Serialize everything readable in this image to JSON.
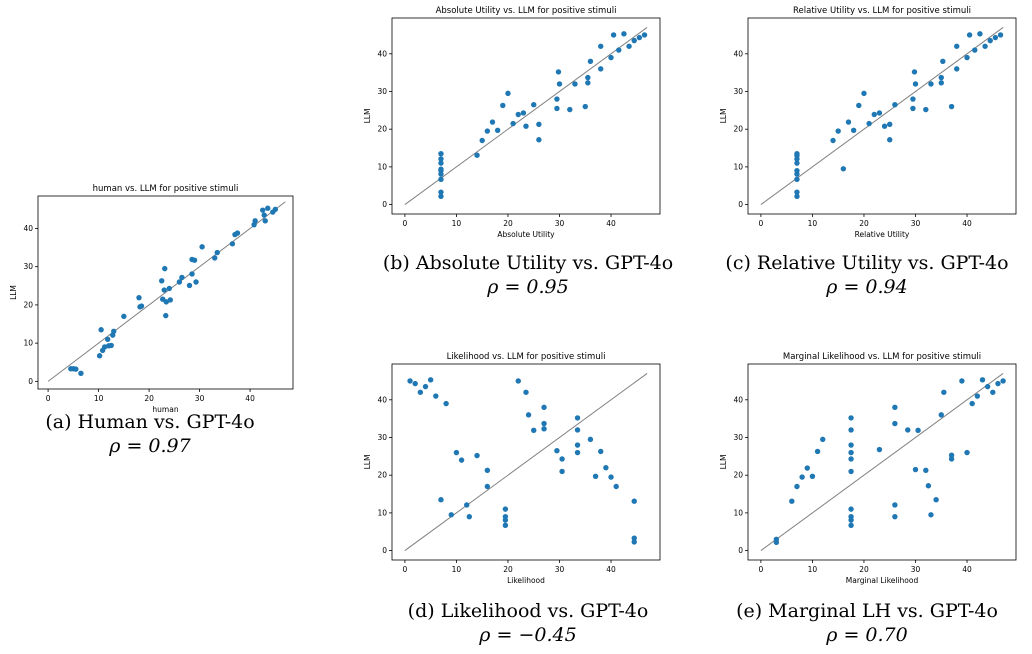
{
  "chart_data": [
    {
      "type": "scatter",
      "title": "human vs. LLM for positive stimuli",
      "xlabel": "human",
      "ylabel": "LLM",
      "xlim": [
        -2,
        48.5
      ],
      "ylim": [
        -2,
        48.5
      ],
      "xticks": [
        0,
        10,
        20,
        30,
        40
      ],
      "yticks": [
        0,
        10,
        20,
        30,
        40
      ],
      "reference_line": [
        [
          0,
          0
        ],
        [
          47,
          47
        ]
      ],
      "color": "#1f77b4",
      "line_color": "#808080",
      "caption": "(a) Human vs. GPT-4o",
      "rho": "ρ = 0.97",
      "points": [
        [
          4.5,
          3.3
        ],
        [
          5.0,
          3.3
        ],
        [
          5.5,
          3.2
        ],
        [
          6.5,
          2.1
        ],
        [
          10.2,
          6.7
        ],
        [
          10.5,
          13.5
        ],
        [
          10.8,
          8.1
        ],
        [
          11.2,
          9.0
        ],
        [
          11.8,
          11.0
        ],
        [
          12.0,
          9.3
        ],
        [
          12.5,
          9.4
        ],
        [
          12.8,
          12.1
        ],
        [
          13.0,
          13.1
        ],
        [
          15.0,
          17.0
        ],
        [
          18.0,
          21.9
        ],
        [
          18.2,
          19.5
        ],
        [
          18.5,
          19.7
        ],
        [
          22.5,
          26.3
        ],
        [
          22.7,
          21.5
        ],
        [
          23.0,
          23.9
        ],
        [
          23.1,
          29.5
        ],
        [
          23.3,
          17.2
        ],
        [
          23.4,
          20.8
        ],
        [
          24.0,
          24.3
        ],
        [
          24.2,
          21.3
        ],
        [
          26.0,
          26.0
        ],
        [
          26.5,
          27.2
        ],
        [
          28.0,
          25.1
        ],
        [
          28.5,
          31.9
        ],
        [
          28.5,
          28.1
        ],
        [
          29.0,
          31.7
        ],
        [
          29.3,
          26.0
        ],
        [
          30.5,
          35.2
        ],
        [
          33.0,
          32.3
        ],
        [
          33.5,
          33.7
        ],
        [
          36.5,
          36.0
        ],
        [
          37.0,
          38.4
        ],
        [
          37.5,
          38.8
        ],
        [
          40.8,
          41.0
        ],
        [
          41.0,
          42.0
        ],
        [
          42.5,
          44.8
        ],
        [
          42.8,
          43.5
        ],
        [
          43.0,
          42.0
        ],
        [
          43.5,
          45.3
        ],
        [
          44.5,
          44.3
        ],
        [
          45.0,
          45.0
        ]
      ]
    },
    {
      "type": "scatter",
      "title": "Absolute Utility vs. LLM for positive stimuli",
      "xlabel": "Absolute Utility",
      "ylabel": "LLM",
      "xlim": [
        -2.5,
        49.5
      ],
      "ylim": [
        -2.5,
        49.5
      ],
      "xticks": [
        0,
        10,
        20,
        30,
        40
      ],
      "yticks": [
        0,
        10,
        20,
        30,
        40
      ],
      "reference_line": [
        [
          0,
          0
        ],
        [
          47,
          47
        ]
      ],
      "color": "#1f77b4",
      "line_color": "#808080",
      "caption": "(b) Absolute Utility vs. GPT-4o",
      "rho": "ρ = 0.95",
      "points": [
        [
          7,
          2.2
        ],
        [
          7,
          3.3
        ],
        [
          7,
          6.7
        ],
        [
          7,
          8.1
        ],
        [
          7,
          9.0
        ],
        [
          7,
          9.4
        ],
        [
          7,
          11.0
        ],
        [
          7,
          12.1
        ],
        [
          7,
          13.5
        ],
        [
          14,
          13.1
        ],
        [
          15,
          17.0
        ],
        [
          16,
          19.5
        ],
        [
          17,
          21.9
        ],
        [
          18,
          19.7
        ],
        [
          19,
          26.3
        ],
        [
          20,
          29.5
        ],
        [
          21,
          21.5
        ],
        [
          22,
          23.9
        ],
        [
          23,
          24.3
        ],
        [
          23.5,
          20.8
        ],
        [
          25,
          26.5
        ],
        [
          26,
          17.2
        ],
        [
          26,
          21.3
        ],
        [
          29.5,
          25.5
        ],
        [
          29.5,
          28.0
        ],
        [
          29.8,
          35.2
        ],
        [
          30,
          32.0
        ],
        [
          32,
          25.2
        ],
        [
          33,
          32.0
        ],
        [
          35,
          26.0
        ],
        [
          35.5,
          32.3
        ],
        [
          35.5,
          33.7
        ],
        [
          36,
          38.0
        ],
        [
          38,
          36.0
        ],
        [
          38,
          42.0
        ],
        [
          40,
          39.0
        ],
        [
          40.5,
          45.0
        ],
        [
          41.5,
          41.0
        ],
        [
          42.5,
          45.3
        ],
        [
          43.5,
          42.0
        ],
        [
          44.5,
          43.5
        ],
        [
          45.5,
          44.3
        ],
        [
          46.5,
          45.0
        ]
      ]
    },
    {
      "type": "scatter",
      "title": "Relative Utility vs. LLM for positive stimuli",
      "xlabel": "Relative Utility",
      "ylabel": "LLM",
      "xlim": [
        -2.5,
        49.5
      ],
      "ylim": [
        -2.5,
        49.5
      ],
      "xticks": [
        0,
        10,
        20,
        30,
        40
      ],
      "yticks": [
        0,
        10,
        20,
        30,
        40
      ],
      "reference_line": [
        [
          0,
          0
        ],
        [
          47,
          47
        ]
      ],
      "color": "#1f77b4",
      "line_color": "#808080",
      "caption": "(c) Relative Utility vs. GPT-4o",
      "rho": "ρ = 0.94",
      "points": [
        [
          7,
          2.2
        ],
        [
          7,
          3.3
        ],
        [
          7,
          6.7
        ],
        [
          7,
          8.1
        ],
        [
          7,
          9.0
        ],
        [
          7,
          11.0
        ],
        [
          7,
          12.1
        ],
        [
          7,
          13.0
        ],
        [
          7,
          13.5
        ],
        [
          14,
          17.0
        ],
        [
          15,
          19.5
        ],
        [
          16,
          9.5
        ],
        [
          17,
          21.9
        ],
        [
          18,
          19.7
        ],
        [
          19,
          26.3
        ],
        [
          20,
          29.5
        ],
        [
          21,
          21.5
        ],
        [
          22,
          23.9
        ],
        [
          23,
          24.3
        ],
        [
          24,
          20.8
        ],
        [
          25,
          17.2
        ],
        [
          25,
          21.3
        ],
        [
          26,
          26.5
        ],
        [
          29.5,
          25.5
        ],
        [
          29.5,
          28.0
        ],
        [
          29.8,
          35.2
        ],
        [
          30,
          32.0
        ],
        [
          32,
          25.2
        ],
        [
          33,
          32.0
        ],
        [
          35,
          32.3
        ],
        [
          35,
          33.7
        ],
        [
          35.3,
          38.0
        ],
        [
          37,
          26.0
        ],
        [
          38,
          36.0
        ],
        [
          38,
          42.0
        ],
        [
          40,
          39.0
        ],
        [
          40.5,
          45.0
        ],
        [
          41.5,
          41.0
        ],
        [
          42.5,
          45.3
        ],
        [
          43.5,
          42.0
        ],
        [
          44.5,
          43.5
        ],
        [
          45.5,
          44.3
        ],
        [
          46.5,
          45.0
        ]
      ]
    },
    {
      "type": "scatter",
      "title": "Likelihood vs. LLM for positive stimuli",
      "xlabel": "Likelihood",
      "ylabel": "LLM",
      "xlim": [
        -2.5,
        49.5
      ],
      "ylim": [
        -2.5,
        49.5
      ],
      "xticks": [
        0,
        10,
        20,
        30,
        40
      ],
      "yticks": [
        0,
        10,
        20,
        30,
        40
      ],
      "reference_line": [
        [
          0,
          0
        ],
        [
          47,
          47
        ]
      ],
      "color": "#1f77b4",
      "line_color": "#808080",
      "caption": "(d) Likelihood vs. GPT-4o",
      "rho": "ρ = −0.45",
      "points": [
        [
          1,
          45.0
        ],
        [
          2,
          44.3
        ],
        [
          3,
          42.0
        ],
        [
          4,
          43.5
        ],
        [
          5,
          45.3
        ],
        [
          6,
          41.0
        ],
        [
          7,
          13.5
        ],
        [
          8,
          39.0
        ],
        [
          9,
          9.5
        ],
        [
          10,
          26.0
        ],
        [
          11,
          24.0
        ],
        [
          12,
          12.1
        ],
        [
          12.5,
          9.0
        ],
        [
          14,
          25.2
        ],
        [
          16,
          17.0
        ],
        [
          16,
          21.3
        ],
        [
          19.5,
          6.7
        ],
        [
          19.5,
          8.1
        ],
        [
          19.5,
          9.0
        ],
        [
          19.5,
          11.0
        ],
        [
          22,
          45.0
        ],
        [
          23.5,
          42.0
        ],
        [
          24,
          36.0
        ],
        [
          25,
          31.9
        ],
        [
          27,
          38.0
        ],
        [
          27,
          32.3
        ],
        [
          27,
          33.7
        ],
        [
          29.5,
          26.5
        ],
        [
          30.5,
          24.3
        ],
        [
          30.5,
          21.0
        ],
        [
          33.5,
          35.2
        ],
        [
          33.5,
          32.0
        ],
        [
          33.5,
          28.0
        ],
        [
          33.5,
          26.0
        ],
        [
          36,
          29.5
        ],
        [
          37,
          19.7
        ],
        [
          38,
          26.3
        ],
        [
          39,
          22.0
        ],
        [
          40,
          19.5
        ],
        [
          41,
          17.0
        ],
        [
          44.5,
          13.1
        ],
        [
          44.5,
          3.3
        ],
        [
          44.5,
          2.3
        ]
      ]
    },
    {
      "type": "scatter",
      "title": "Marginal Likelihood vs. LLM for positive stimuli",
      "xlabel": "Marginal Likelihood",
      "ylabel": "LLM",
      "xlim": [
        -2.5,
        49.5
      ],
      "ylim": [
        -2.5,
        49.5
      ],
      "xticks": [
        0,
        10,
        20,
        30,
        40
      ],
      "yticks": [
        0,
        10,
        20,
        30,
        40
      ],
      "reference_line": [
        [
          0,
          0
        ],
        [
          47,
          47
        ]
      ],
      "color": "#1f77b4",
      "line_color": "#808080",
      "caption": "(e) Marginal LH vs. GPT-4o",
      "rho": "ρ = 0.70",
      "points": [
        [
          3,
          2.2
        ],
        [
          3,
          3.0
        ],
        [
          6,
          13.1
        ],
        [
          7,
          17.0
        ],
        [
          8,
          19.5
        ],
        [
          9,
          21.9
        ],
        [
          10,
          19.7
        ],
        [
          11,
          26.3
        ],
        [
          12,
          29.5
        ],
        [
          17.5,
          6.7
        ],
        [
          17.5,
          8.1
        ],
        [
          17.5,
          9.0
        ],
        [
          17.5,
          11.0
        ],
        [
          17.5,
          21.0
        ],
        [
          17.5,
          24.3
        ],
        [
          17.5,
          26.0
        ],
        [
          17.5,
          28.0
        ],
        [
          17.5,
          32.0
        ],
        [
          17.5,
          35.2
        ],
        [
          23,
          26.8
        ],
        [
          26,
          9.0
        ],
        [
          26,
          12.1
        ],
        [
          26,
          33.7
        ],
        [
          26,
          38.0
        ],
        [
          28.5,
          32.0
        ],
        [
          30,
          21.5
        ],
        [
          30.5,
          31.9
        ],
        [
          32,
          21.3
        ],
        [
          32.5,
          17.2
        ],
        [
          33,
          9.5
        ],
        [
          34,
          13.5
        ],
        [
          35,
          36.0
        ],
        [
          35.5,
          42.0
        ],
        [
          37,
          24.3
        ],
        [
          37,
          25.3
        ],
        [
          39,
          45.0
        ],
        [
          40,
          26.0
        ],
        [
          41,
          39.0
        ],
        [
          42,
          41.0
        ],
        [
          43,
          45.3
        ],
        [
          44,
          43.5
        ],
        [
          45,
          42.0
        ],
        [
          46,
          44.3
        ],
        [
          47,
          45.0
        ]
      ]
    }
  ]
}
